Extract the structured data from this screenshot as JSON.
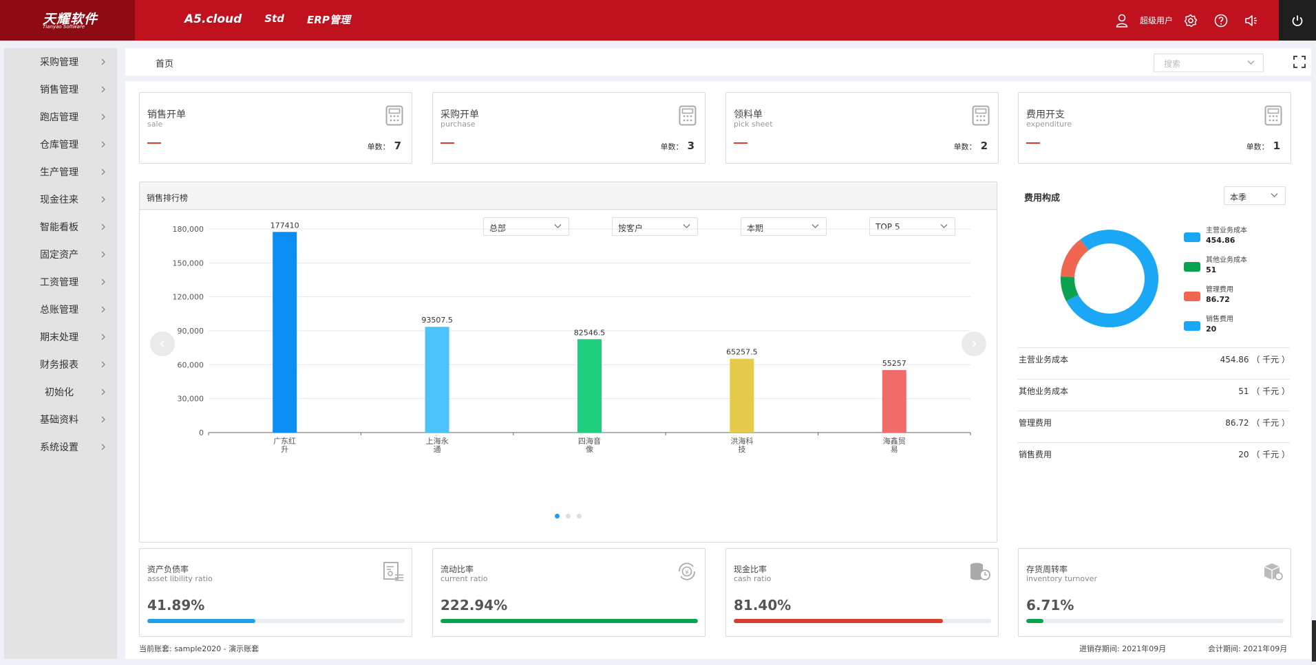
{
  "header": {
    "logo_cn": "天耀软件",
    "logo_en": "Tianyao Software",
    "nav": [
      "A5.cloud",
      "Std",
      "ERP管理"
    ],
    "user_name": "超级用户"
  },
  "sidebar": {
    "items": [
      {
        "label": "采购管理"
      },
      {
        "label": "销售管理"
      },
      {
        "label": "跑店管理"
      },
      {
        "label": "仓库管理"
      },
      {
        "label": "生产管理"
      },
      {
        "label": "现金往来"
      },
      {
        "label": "智能看板"
      },
      {
        "label": "固定资产"
      },
      {
        "label": "工资管理"
      },
      {
        "label": "总账管理"
      },
      {
        "label": "期末处理"
      },
      {
        "label": "财务报表"
      },
      {
        "label": "初始化"
      },
      {
        "label": "基础资料"
      },
      {
        "label": "系统设置"
      }
    ]
  },
  "breadcrumb": {
    "home": "首页"
  },
  "search": {
    "placeholder": "搜索"
  },
  "stats": [
    {
      "title": "销售开单",
      "subtitle": "sale",
      "count_label": "单数：",
      "count": "7"
    },
    {
      "title": "采购开单",
      "subtitle": "purchase",
      "count_label": "单数：",
      "count": "3"
    },
    {
      "title": "领料单",
      "subtitle": "pick sheet",
      "count_label": "单数：",
      "count": "2"
    },
    {
      "title": "费用开支",
      "subtitle": "expenditure",
      "count_label": "单数：",
      "count": "1"
    }
  ],
  "sales_rank": {
    "title": "销售排行榜",
    "filters": [
      "总部",
      "按客户",
      "本期",
      "TOP 5"
    ]
  },
  "chart_data": {
    "type": "bar",
    "title": "销售排行榜",
    "categories": [
      "广东红升",
      "上海永通",
      "四海音像",
      "洪海科技",
      "海鑫贸易"
    ],
    "category_lines": [
      [
        "广东红",
        "升"
      ],
      [
        "上海永",
        "通"
      ],
      [
        "四海音",
        "像"
      ],
      [
        "洪海科",
        "技"
      ],
      [
        "海鑫贸",
        "易"
      ]
    ],
    "values": [
      177410,
      93507.5,
      82546.5,
      65257.5,
      55257
    ],
    "value_labels": [
      "177410",
      "93507.5",
      "82546.5",
      "65257.5",
      "55257"
    ],
    "colors": [
      "#0a8ef3",
      "#4cc3fb",
      "#1fcf7d",
      "#e6ca4b",
      "#f26b6b"
    ],
    "ylim": [
      0,
      180000
    ],
    "yticks": [
      0,
      30000,
      60000,
      90000,
      120000,
      150000,
      180000
    ],
    "ytick_labels": [
      "0",
      "30,000",
      "60,000",
      "90,000",
      "120,000",
      "150,000",
      "180,000"
    ],
    "grid": true,
    "xlabel": "",
    "ylabel": ""
  },
  "expense": {
    "title": "费用构成",
    "period": "本季",
    "items": [
      {
        "name": "主营业务成本",
        "value": "454.86",
        "amount": 454.86,
        "color": "#1aa7f5",
        "row_value": "454.86 （ 千元 ）"
      },
      {
        "name": "其他业务成本",
        "value": "51",
        "amount": 51,
        "color": "#0aa14f",
        "row_value": "51 （ 千元 ）"
      },
      {
        "name": "管理费用",
        "value": "86.72",
        "amount": 86.72,
        "color": "#f0664f",
        "row_value": "86.72 （ 千元 ）"
      },
      {
        "name": "销售费用",
        "value": "20",
        "amount": 20,
        "color": "#1aa7f5",
        "row_value": "20 （ 千元 ）"
      }
    ]
  },
  "ratios": [
    {
      "title": "资产负债率",
      "subtitle": "asset libility ratio",
      "value": "41.89%",
      "fraction": 0.4189,
      "color": "#1e9fe8",
      "icon": "document-chart-icon"
    },
    {
      "title": "流动比率",
      "subtitle": "current ratio",
      "value": "222.94%",
      "fraction": 1.0,
      "color": "#0aa14f",
      "icon": "yen-cycle-icon"
    },
    {
      "title": "现金比率",
      "subtitle": "cash ratio",
      "value": "81.40%",
      "fraction": 0.814,
      "color": "#d63d30",
      "icon": "coins-clock-icon"
    },
    {
      "title": "存货周转率",
      "subtitle": "inventory turnover",
      "value": "6.71%",
      "fraction": 0.0671,
      "color": "#0aa14f",
      "icon": "box-icon"
    }
  ],
  "footer": {
    "account": "当前账套: sample2020 - 演示账套",
    "inventory_period": "进销存期间: 2021年09月",
    "accounting_period": "会计期间: 2021年09月"
  }
}
